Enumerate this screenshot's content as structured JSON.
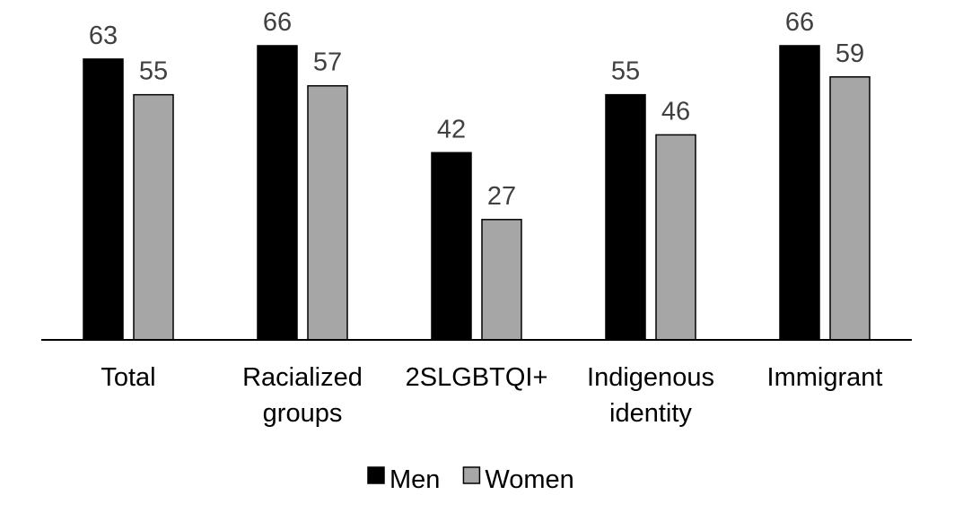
{
  "chart_data": {
    "type": "bar",
    "categories": [
      [
        "Total"
      ],
      [
        "Racialized",
        "groups"
      ],
      [
        "2SLGBTQI+"
      ],
      [
        "Indigenous",
        "identity"
      ],
      [
        "Immigrant"
      ]
    ],
    "series": [
      {
        "name": "Men",
        "color": "#000000",
        "values": [
          63,
          66,
          42,
          55,
          66
        ]
      },
      {
        "name": "Women",
        "color": "#a6a6a6",
        "values": [
          55,
          57,
          27,
          46,
          59
        ]
      }
    ],
    "ylim": [
      0,
      70
    ],
    "grid": false,
    "legend_position": "bottom",
    "data_labels": true
  }
}
